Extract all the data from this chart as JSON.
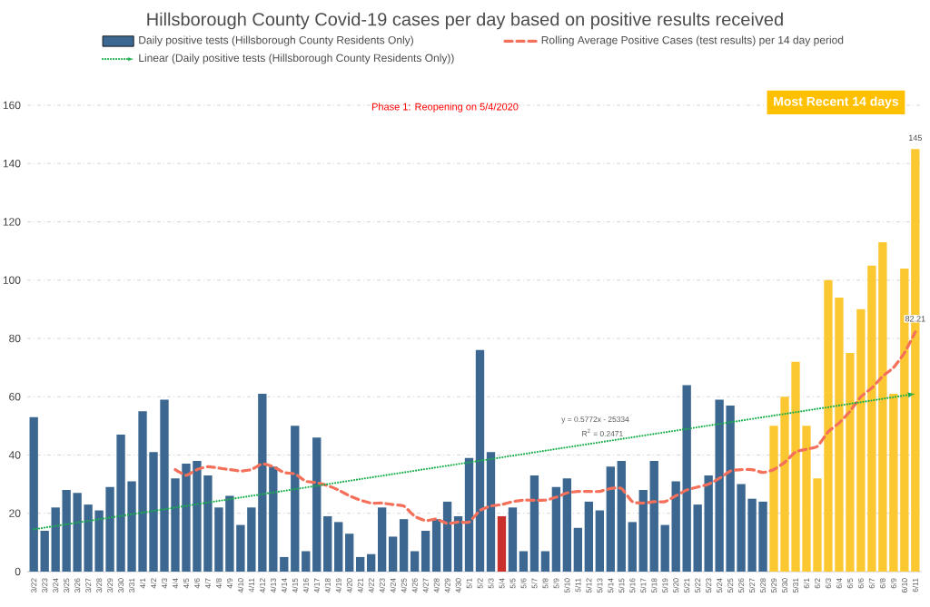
{
  "chart_data": {
    "type": "bar",
    "title": "Hillsborough County Covid-19 cases per day based on positive results received",
    "categories": [
      "3/22",
      "3/23",
      "3/24",
      "3/25",
      "3/26",
      "3/27",
      "3/28",
      "3/29",
      "3/30",
      "3/31",
      "4/1",
      "4/2",
      "4/3",
      "4/4",
      "4/5",
      "4/6",
      "4/7",
      "4/8",
      "4/9",
      "4/10",
      "4/11",
      "4/12",
      "4/13",
      "4/14",
      "4/15",
      "4/16",
      "4/17",
      "4/18",
      "4/19",
      "4/20",
      "4/21",
      "4/22",
      "4/23",
      "4/24",
      "4/25",
      "4/26",
      "4/27",
      "4/28",
      "4/29",
      "4/30",
      "5/1",
      "5/2",
      "5/3",
      "5/4",
      "5/5",
      "5/6",
      "5/7",
      "5/8",
      "5/9",
      "5/10",
      "5/11",
      "5/12",
      "5/13",
      "5/14",
      "5/15",
      "5/16",
      "5/17",
      "5/18",
      "5/19",
      "5/20",
      "5/21",
      "5/22",
      "5/23",
      "5/24",
      "5/25",
      "5/26",
      "5/27",
      "5/28",
      "5/29",
      "5/30",
      "5/31",
      "6/1",
      "6/2",
      "6/3",
      "6/4",
      "6/5",
      "6/6",
      "6/7",
      "6/8",
      "6/9",
      "6/10",
      "6/11"
    ],
    "series": [
      {
        "name": "Daily positive tests (Hillsborough County Residents Only)",
        "colors": [
          "#3b6790",
          "#3b6790",
          "#3b6790",
          "#3b6790",
          "#3b6790",
          "#3b6790",
          "#3b6790",
          "#3b6790",
          "#3b6790",
          "#3b6790",
          "#3b6790",
          "#3b6790",
          "#3b6790",
          "#3b6790",
          "#3b6790",
          "#3b6790",
          "#3b6790",
          "#3b6790",
          "#3b6790",
          "#3b6790",
          "#3b6790",
          "#3b6790",
          "#3b6790",
          "#3b6790",
          "#3b6790",
          "#3b6790",
          "#3b6790",
          "#3b6790",
          "#3b6790",
          "#3b6790",
          "#3b6790",
          "#3b6790",
          "#3b6790",
          "#3b6790",
          "#3b6790",
          "#3b6790",
          "#3b6790",
          "#3b6790",
          "#3b6790",
          "#3b6790",
          "#3b6790",
          "#3b6790",
          "#3b6790",
          "#c9302c",
          "#3b6790",
          "#3b6790",
          "#3b6790",
          "#3b6790",
          "#3b6790",
          "#3b6790",
          "#3b6790",
          "#3b6790",
          "#3b6790",
          "#3b6790",
          "#3b6790",
          "#3b6790",
          "#3b6790",
          "#3b6790",
          "#3b6790",
          "#3b6790",
          "#3b6790",
          "#3b6790",
          "#3b6790",
          "#3b6790",
          "#3b6790",
          "#3b6790",
          "#3b6790",
          "#3b6790",
          "#fcc832",
          "#fcc832",
          "#fcc832",
          "#fcc832",
          "#fcc832",
          "#fcc832",
          "#fcc832",
          "#fcc832",
          "#fcc832",
          "#fcc832",
          "#fcc832",
          "#fcc832",
          "#fcc832",
          "#fcc832"
        ],
        "values": [
          53,
          14,
          22,
          28,
          27,
          23,
          21,
          29,
          47,
          31,
          55,
          41,
          59,
          32,
          37,
          38,
          33,
          22,
          26,
          16,
          22,
          61,
          36,
          5,
          50,
          7,
          46,
          19,
          17,
          13,
          5,
          6,
          22,
          12,
          18,
          7,
          14,
          18,
          24,
          19,
          39,
          76,
          41,
          19,
          22,
          7,
          33,
          7,
          29,
          32,
          15,
          24,
          21,
          36,
          38,
          17,
          28,
          38,
          16,
          31,
          64,
          23,
          33,
          59,
          57,
          30,
          25,
          24,
          50,
          60,
          72,
          50,
          32,
          100,
          94,
          75,
          90,
          105,
          113,
          61,
          104,
          145
        ],
        "value_labels": [
          null,
          null,
          null,
          null,
          null,
          null,
          null,
          null,
          null,
          null,
          null,
          null,
          null,
          null,
          null,
          null,
          null,
          null,
          null,
          null,
          null,
          null,
          null,
          null,
          null,
          null,
          null,
          null,
          null,
          null,
          null,
          null,
          null,
          null,
          null,
          null,
          null,
          null,
          null,
          null,
          null,
          null,
          null,
          null,
          null,
          null,
          null,
          null,
          null,
          null,
          null,
          null,
          null,
          null,
          null,
          null,
          null,
          null,
          null,
          null,
          null,
          null,
          null,
          null,
          null,
          null,
          null,
          null,
          null,
          null,
          null,
          null,
          null,
          null,
          null,
          null,
          null,
          null,
          null,
          null,
          null,
          "145"
        ]
      },
      {
        "name": "Rolling Average Positive Cases (test results) per 14 day period",
        "type": "line",
        "color": "#f4705a",
        "line_style": "dashed",
        "values": [
          null,
          null,
          null,
          null,
          null,
          null,
          null,
          null,
          null,
          null,
          null,
          null,
          null,
          35,
          33,
          35,
          36,
          35.5,
          35,
          34.5,
          35,
          37,
          36,
          34,
          33.5,
          31,
          30.5,
          29.5,
          28,
          26,
          24.5,
          23.5,
          23.5,
          23,
          22.5,
          19,
          17.5,
          18,
          16.5,
          17,
          17,
          21,
          22.5,
          23,
          24,
          24.5,
          24.5,
          24.5,
          25.5,
          27,
          27.5,
          27.5,
          27.5,
          28.5,
          28.5,
          24,
          23.5,
          24,
          24,
          26,
          28,
          29,
          30,
          32,
          34.5,
          35,
          35,
          34,
          35,
          37.5,
          41,
          42,
          43,
          48,
          51,
          55,
          60,
          63,
          67,
          70,
          75,
          82.21
        ],
        "value_labels": [
          null,
          null,
          null,
          null,
          null,
          null,
          null,
          null,
          null,
          null,
          null,
          null,
          null,
          null,
          null,
          null,
          null,
          null,
          null,
          null,
          null,
          null,
          null,
          null,
          null,
          null,
          null,
          null,
          null,
          null,
          null,
          null,
          null,
          null,
          null,
          null,
          null,
          null,
          null,
          null,
          null,
          null,
          null,
          null,
          null,
          null,
          null,
          null,
          null,
          null,
          null,
          null,
          null,
          null,
          null,
          null,
          null,
          null,
          null,
          null,
          null,
          null,
          null,
          null,
          null,
          null,
          null,
          null,
          null,
          null,
          null,
          null,
          null,
          null,
          null,
          null,
          null,
          null,
          null,
          null,
          null,
          "82.21"
        ]
      },
      {
        "name": "Linear (Daily positive tests (Hillsborough County Residents Only))",
        "type": "line",
        "color": "#1aae4a",
        "line_style": "dotted",
        "x": [
          "3/22",
          "6/11"
        ],
        "values": [
          14.5,
          61
        ]
      }
    ],
    "annotations": [
      "Phase 1: Reopening on 5/4/2020",
      "Most Recent 14 days",
      "y = 0.5772x - 25334",
      "R$^{2}$ = 0.2471"
    ],
    "ylim": [
      0,
      160
    ],
    "yticks": [
      0,
      20,
      40,
      60,
      80,
      100,
      120,
      140,
      160
    ],
    "grid": "y",
    "legend": "top"
  }
}
